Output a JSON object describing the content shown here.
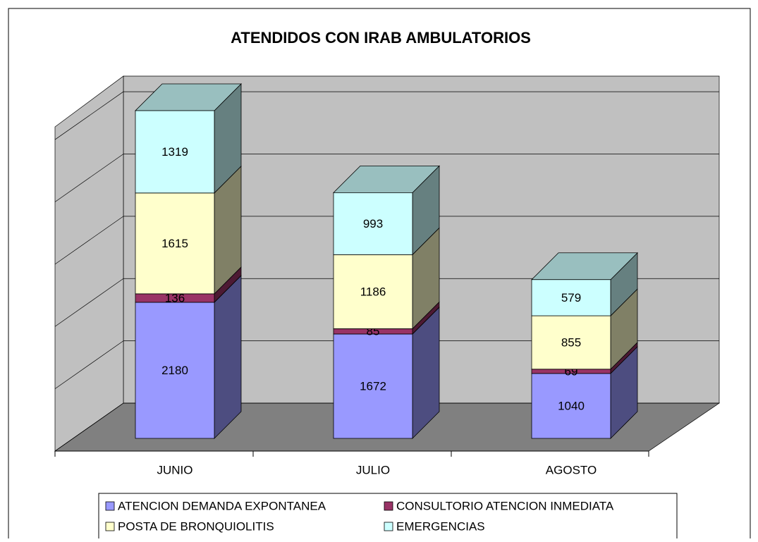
{
  "chart_data": {
    "type": "bar",
    "stacked": true,
    "title": "ATENDIDOS CON IRAB AMBULATORIOS",
    "categories": [
      "JUNIO",
      "JULIO",
      "AGOSTO"
    ],
    "series": [
      {
        "name": "ATENCION DEMANDA EXPONTANEA",
        "color": "#9999ff",
        "values": [
          2180,
          1672,
          1040
        ]
      },
      {
        "name": "CONSULTORIO ATENCION INMEDIATA",
        "color": "#993366",
        "values": [
          136,
          85,
          69
        ]
      },
      {
        "name": "POSTA DE BRONQUIOLITIS",
        "color": "#ffffcc",
        "values": [
          1615,
          1186,
          855
        ]
      },
      {
        "name": "EMERGENCIAS",
        "color": "#ccffff",
        "values": [
          1319,
          993,
          579
        ]
      }
    ],
    "ylim": [
      0,
      5250
    ],
    "yticks": [
      0,
      1000,
      2000,
      3000,
      4000,
      5000
    ],
    "grid": true
  }
}
